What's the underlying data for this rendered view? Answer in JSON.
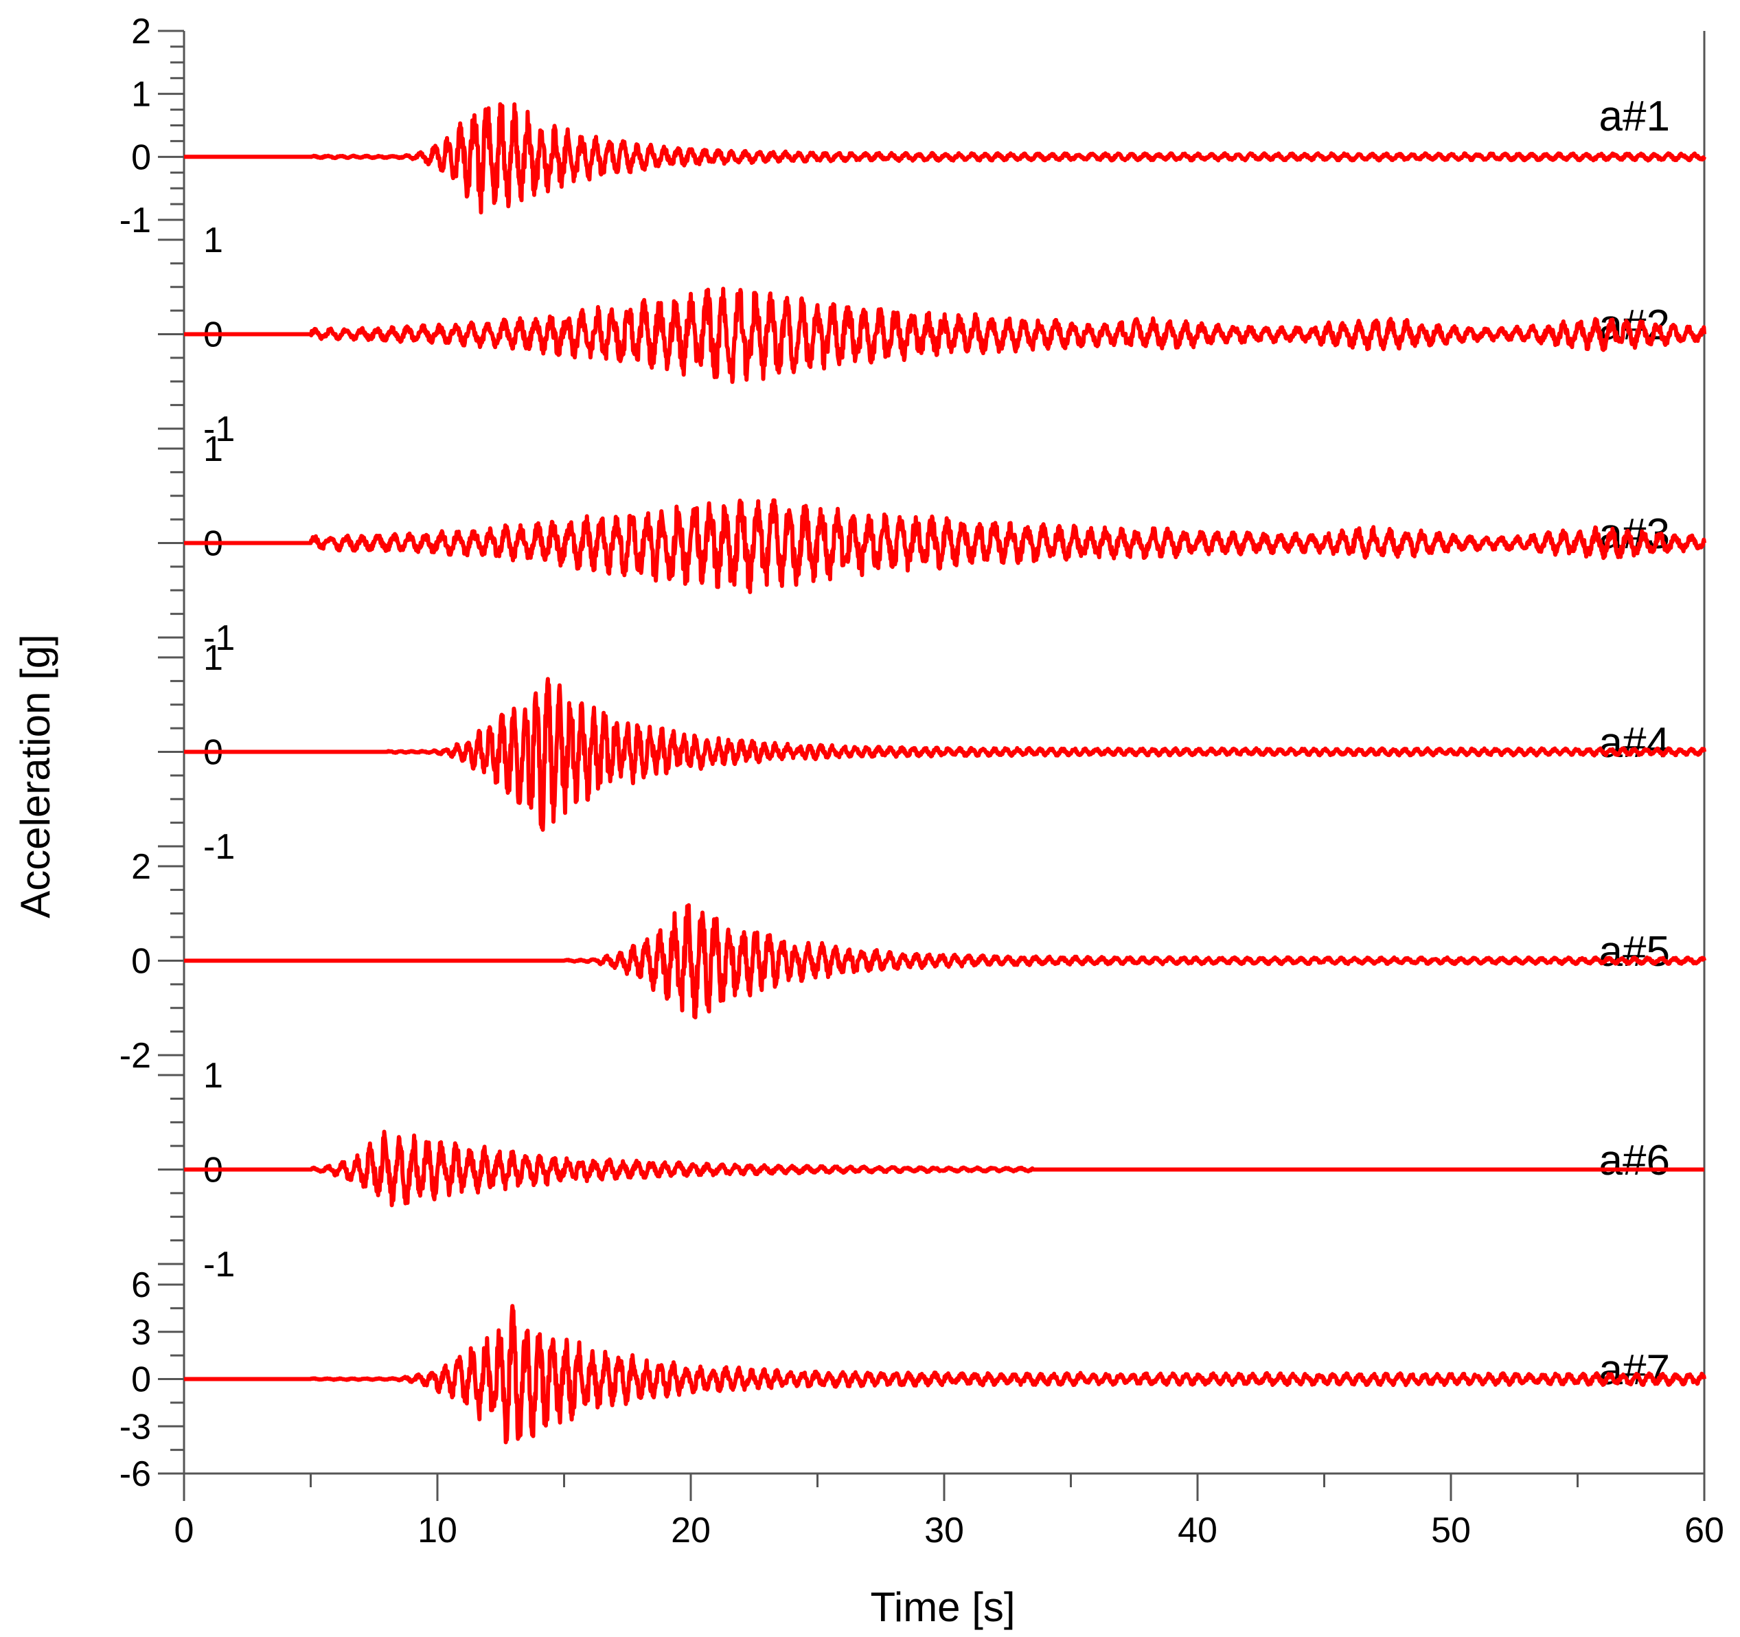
{
  "chart_data": {
    "type": "line",
    "xlabel": "Time  [s]",
    "ylabel": "Acceleration [g]",
    "xlim": [
      0,
      60
    ],
    "x_ticks": [
      0,
      10,
      20,
      30,
      40,
      50,
      60
    ],
    "x_minor_step": 5,
    "line_color": "#ff0000",
    "grid": false,
    "panels": [
      {
        "name": "a#1",
        "ylim": [
          -1,
          2
        ],
        "y_ticks": [
          -1,
          0,
          1,
          2
        ],
        "y_minor_step": 0.25,
        "onset": 8.5,
        "peak_time": 12.0,
        "peak_amp": 1.15,
        "decay": 3.2,
        "noise_start": 5.0,
        "noise_amp": 0.02,
        "freq": 1.9,
        "tail": 0.05,
        "end_time": 60
      },
      {
        "name": "a#2",
        "ylim": [
          -1,
          1
        ],
        "y_ticks": [
          -1,
          0,
          1
        ],
        "y_minor_step": 0.25,
        "onset": 5.0,
        "peak_time": 21.5,
        "peak_amp": 0.55,
        "decay": 9.0,
        "noise_start": 5.0,
        "noise_amp": 0.06,
        "freq": 1.6,
        "tail": 0.08,
        "end_time": 60
      },
      {
        "name": "a#3",
        "ylim": [
          -1,
          1
        ],
        "y_ticks": [
          -1,
          0,
          1
        ],
        "y_minor_step": 0.25,
        "onset": 5.0,
        "peak_time": 21.5,
        "peak_amp": 0.58,
        "decay": 10.0,
        "noise_start": 5.0,
        "noise_amp": 0.08,
        "freq": 1.6,
        "tail": 0.09,
        "end_time": 60
      },
      {
        "name": "a#4",
        "ylim": [
          -1,
          1
        ],
        "y_ticks": [
          -1,
          0,
          1
        ],
        "y_minor_step": 0.25,
        "onset": 9.5,
        "peak_time": 14.0,
        "peak_amp": 0.95,
        "decay": 3.5,
        "noise_start": 8.0,
        "noise_amp": 0.01,
        "freq": 2.2,
        "tail": 0.04,
        "end_time": 60
      },
      {
        "name": "a#5",
        "ylim": [
          -2,
          2
        ],
        "y_ticks": [
          -2,
          0,
          2
        ],
        "y_minor_step": 0.5,
        "onset": 15.5,
        "peak_time": 20.0,
        "peak_amp": 1.4,
        "decay": 3.5,
        "noise_start": 15.0,
        "noise_amp": 0.02,
        "freq": 1.9,
        "tail": 0.05,
        "end_time": 60
      },
      {
        "name": "a#6",
        "ylim": [
          -1,
          1
        ],
        "y_ticks": [
          -1,
          0,
          1
        ],
        "y_minor_step": 0.25,
        "onset": 5.0,
        "peak_time": 8.0,
        "peak_amp": 0.45,
        "decay": 6.0,
        "noise_start": 5.0,
        "noise_amp": 0.02,
        "freq": 1.8,
        "tail": 0.03,
        "end_time": 33.5
      },
      {
        "name": "a#7",
        "ylim": [
          -6,
          6
        ],
        "y_ticks": [
          -6,
          -3,
          0,
          3,
          6
        ],
        "y_minor_step": 1.5,
        "onset": 8.0,
        "peak_time": 13.0,
        "peak_amp": 4.8,
        "decay": 3.5,
        "noise_start": 5.0,
        "noise_amp": 0.05,
        "freq": 1.9,
        "tail": 0.08,
        "end_time": 60
      }
    ]
  }
}
